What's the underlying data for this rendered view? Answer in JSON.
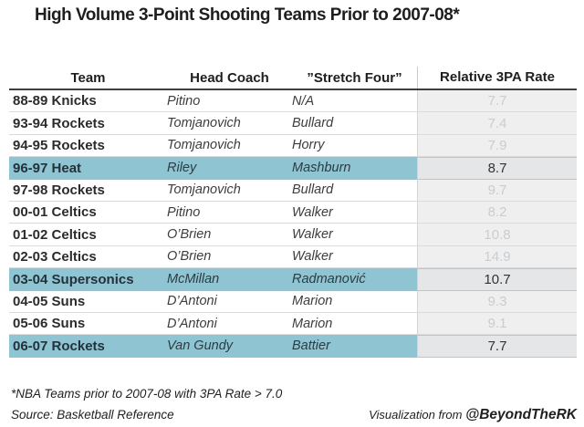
{
  "chart_data": {
    "type": "table",
    "title": "High Volume 3-Point Shooting Teams Prior to 2007-08*",
    "columns": [
      "Team",
      "Head Coach",
      "”Stretch Four”",
      "Relative 3PA Rate"
    ],
    "rows": [
      {
        "team": "88-89 Knicks",
        "head_coach": "Pitino",
        "stretch_four": "N/A",
        "relative_3pa_rate": "7.7",
        "highlighted": false
      },
      {
        "team": "93-94 Rockets",
        "head_coach": "Tomjanovich",
        "stretch_four": "Bullard",
        "relative_3pa_rate": "7.4",
        "highlighted": false
      },
      {
        "team": "94-95 Rockets",
        "head_coach": "Tomjanovich",
        "stretch_four": "Horry",
        "relative_3pa_rate": "7.9",
        "highlighted": false
      },
      {
        "team": "96-97 Heat",
        "head_coach": "Riley",
        "stretch_four": "Mashburn",
        "relative_3pa_rate": "8.7",
        "highlighted": true
      },
      {
        "team": "97-98 Rockets",
        "head_coach": "Tomjanovich",
        "stretch_four": "Bullard",
        "relative_3pa_rate": "9.7",
        "highlighted": false
      },
      {
        "team": "00-01 Celtics",
        "head_coach": "Pitino",
        "stretch_four": "Walker",
        "relative_3pa_rate": "8.2",
        "highlighted": false
      },
      {
        "team": "01-02 Celtics",
        "head_coach": "O’Brien",
        "stretch_four": "Walker",
        "relative_3pa_rate": "10.8",
        "highlighted": false
      },
      {
        "team": "02-03 Celtics",
        "head_coach": "O’Brien",
        "stretch_four": "Walker",
        "relative_3pa_rate": "14.9",
        "highlighted": false
      },
      {
        "team": "03-04 Supersonics",
        "head_coach": "McMillan",
        "stretch_four": "Radmanović",
        "relative_3pa_rate": "10.7",
        "highlighted": true
      },
      {
        "team": "04-05 Suns",
        "head_coach": "D’Antoni",
        "stretch_four": "Marion",
        "relative_3pa_rate": "9.3",
        "highlighted": false
      },
      {
        "team": "05-06 Suns",
        "head_coach": "D’Antoni",
        "stretch_four": "Marion",
        "relative_3pa_rate": "9.1",
        "highlighted": false
      },
      {
        "team": "06-07 Rockets",
        "head_coach": "Van Gundy",
        "stretch_four": "Battier",
        "relative_3pa_rate": "7.7",
        "highlighted": true
      }
    ],
    "footnote": "*NBA Teams prior to 2007-08 with 3PA Rate > 7.0",
    "source": "Source: Basketball Reference",
    "credit_prefix": "Visualization from ",
    "credit_handle": "@BeyondTheRK"
  },
  "colors": {
    "highlight_row": "#8FC5D3",
    "rate_column_background": "#EFEFEF",
    "rate_column_background_highlight": "#E5E6E7",
    "rate_faded_text": "#C9CDD0",
    "rate_dark_text": "#333333"
  }
}
